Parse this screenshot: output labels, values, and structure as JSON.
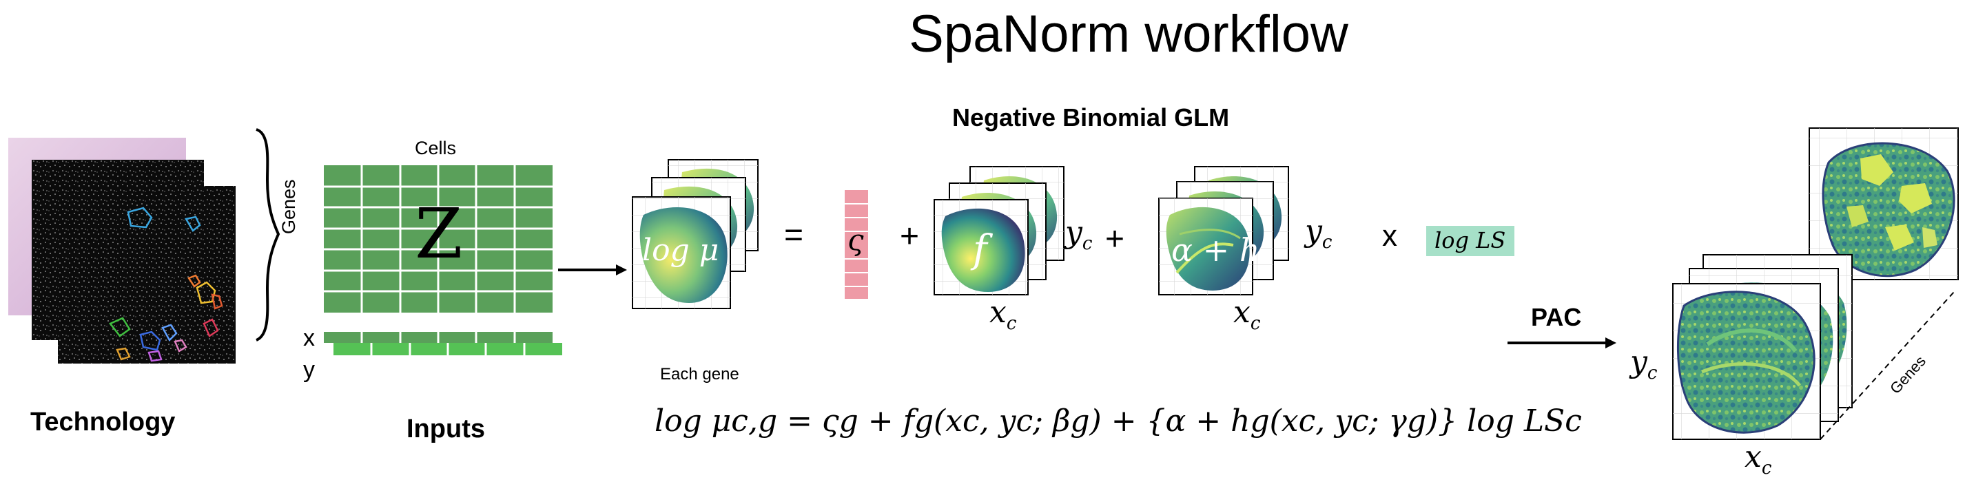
{
  "title": "SpaNorm workflow",
  "technology": {
    "label": "Technology"
  },
  "inputs": {
    "label": "Inputs",
    "cells_label": "Cells",
    "genes_label": "Genes",
    "matrix_symbol": "Z",
    "x_label": "x",
    "y_label": "y"
  },
  "model": {
    "heading": "Negative Binomial GLM",
    "lhs": "log μ",
    "equals": "=",
    "plus": "+",
    "zeta": "ς",
    "f_term": "f",
    "alpha_h": "α + h",
    "yc": "y",
    "xc": "x",
    "sub_c": "c",
    "times": "x",
    "logls": "log LS",
    "each_gene": "Each gene",
    "equation": "log μc,g  =  ςg + fg(xc, yc; βg)  + {α  +  hg(xc, yc; γg)} log LSc"
  },
  "output": {
    "pac_label": "PAC",
    "genes_axis": "Genes",
    "yc": "y",
    "xc": "x",
    "sub_c": "c"
  },
  "colors": {
    "matrix_green": "#5aa05a",
    "coord_green": "#55b855",
    "zeta_pink": "#ee9aa6",
    "logls_teal": "#a6e0c8",
    "tissue_dark": "#2f6b8a",
    "tissue_light": "#cfe36a"
  }
}
